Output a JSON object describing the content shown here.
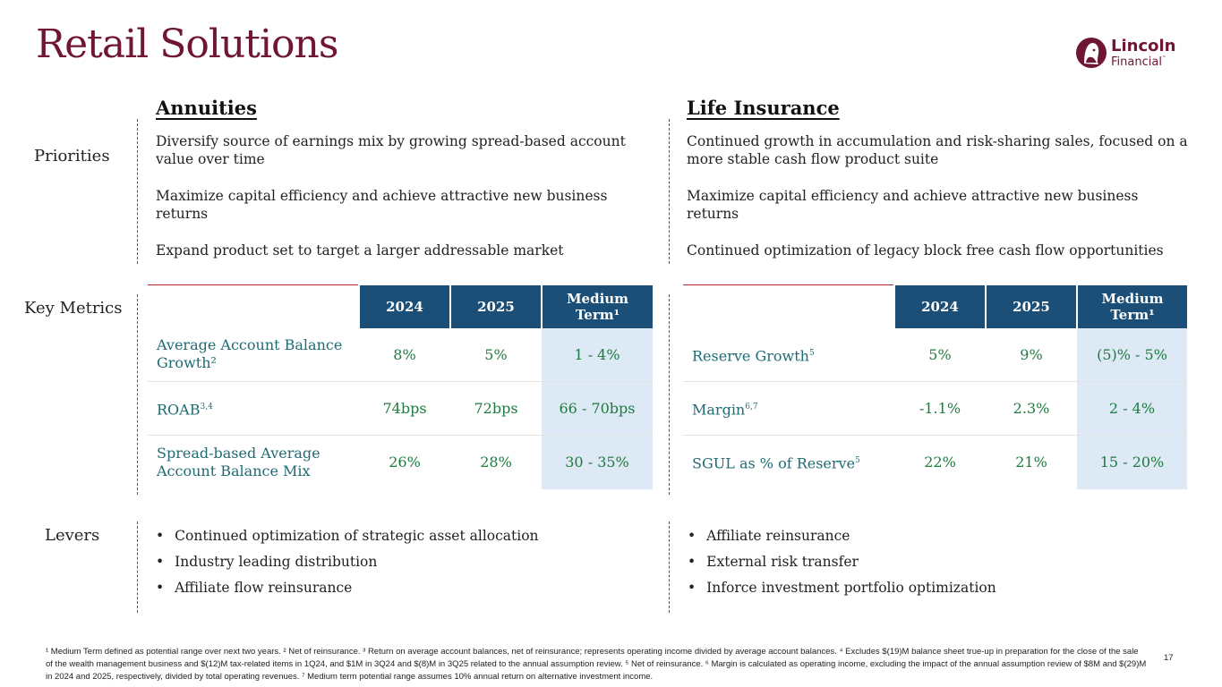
{
  "title": "Retail Solutions",
  "logo": {
    "line1": "Lincoln",
    "line2": "Financial",
    "tm": "™"
  },
  "row_labels": {
    "priorities": "Priorities",
    "key_metrics": "Key Metrics",
    "levers": "Levers"
  },
  "annuities": {
    "heading": "Annuities",
    "priorities": [
      "Diversify source of earnings mix by growing spread-based account value over time",
      "Maximize capital efficiency and achieve attractive new business returns",
      "Expand product set to target a larger addressable market"
    ],
    "table": {
      "headers": [
        "2024",
        "2025",
        "Medium Term¹"
      ],
      "rows": [
        {
          "label": "Average Account Balance Growth²",
          "sup": "",
          "v2024": "8%",
          "v2025": "5%",
          "medium": "1 - 4%"
        },
        {
          "label": "ROAB",
          "sup": "3,4",
          "v2024": "74bps",
          "v2025": "72bps",
          "medium": "66 - 70bps"
        },
        {
          "label": "Spread-based Average Account Balance Mix",
          "sup": "",
          "v2024": "26%",
          "v2025": "28%",
          "medium": "30 - 35%"
        }
      ]
    },
    "levers": [
      "Continued optimization of strategic asset allocation",
      "Industry leading distribution",
      "Affiliate flow reinsurance"
    ]
  },
  "life": {
    "heading": "Life Insurance",
    "priorities": [
      "Continued growth in accumulation and risk-sharing sales, focused on a more stable cash flow product suite",
      "Maximize capital efficiency and achieve attractive new business returns",
      "Continued optimization of legacy block free cash flow opportunities"
    ],
    "table": {
      "headers": [
        "2024",
        "2025",
        "Medium Term¹"
      ],
      "rows": [
        {
          "label": "Reserve Growth",
          "sup": "5",
          "v2024": "5%",
          "v2025": "9%",
          "medium": "(5)% - 5%"
        },
        {
          "label": "Margin",
          "sup": "6,7",
          "v2024": "-1.1%",
          "v2025": "2.3%",
          "medium": "2 - 4%"
        },
        {
          "label": "SGUL as % of Reserve",
          "sup": "5",
          "v2024": "22%",
          "v2025": "21%",
          "medium": "15 - 20%"
        }
      ]
    },
    "levers": [
      "Affiliate reinsurance",
      "External risk transfer",
      "Inforce investment portfolio optimization"
    ]
  },
  "footnote": "¹ Medium Term defined as potential range over next two years. ² Net of reinsurance. ³ Return on average account balances, net of reinsurance; represents operating income divided by average account balances. ⁴ Excludes $(19)M balance sheet true-up in preparation for the close of the sale of the wealth management business and $(12)M tax-related items in 1Q24, and $1M in 3Q24 and $(8)M in 3Q25 related to the annual assumption review. ⁵ Net of reinsurance. ⁶ Margin is calculated as operating income, excluding the impact of the annual assumption review of $8M and $(29)M in 2024 and 2025, respectively, divided by total operating revenues. ⁷ Medium term potential range assumes 10% annual return on alternative investment income.",
  "page_number": "17",
  "colors": {
    "title": "#6e1634",
    "table_header": "#1b4f78",
    "value_green": "#1e7a3e",
    "label_teal": "#1e6b73",
    "highlight": "#dde9f5"
  }
}
